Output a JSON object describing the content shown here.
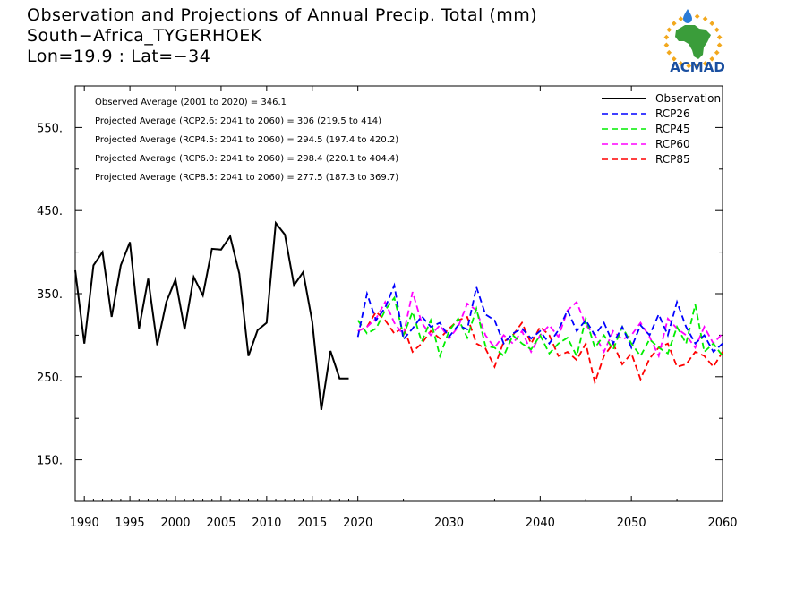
{
  "title": {
    "line1": "Observation and Projections of Annual Precip. Total (mm)",
    "line2": "South−Africa_TYGERHOEK",
    "line3": "Lon=19.9 : Lat=−34"
  },
  "logo": {
    "text": "ACMAD"
  },
  "colors": {
    "observation": "#000000",
    "rcp26": "#0000ff",
    "rcp45": "#00ee00",
    "rcp60": "#ff00ff",
    "rcp85": "#ff0000",
    "logo_text": "#1a4fa0",
    "logo_africa": "#3a9d3a",
    "logo_sun": "#f2a81d"
  },
  "stats": [
    "Observed Average (2001 to 2020) = 346.1",
    "Projected Average (RCP2.6: 2041 to 2060) = 306 (219.5 to 414)",
    "Projected Average (RCP4.5: 2041 to 2060) = 294.5 (197.4 to 420.2)",
    "Projected Average (RCP6.0: 2041 to 2060) = 298.4 (220.1 to 404.4)",
    "Projected Average (RCP8.5: 2041 to 2060) = 277.5 (187.3 to 369.7)"
  ],
  "chart_data": {
    "type": "line",
    "xlim": [
      1989,
      2060
    ],
    "ylim": [
      100,
      600
    ],
    "x_ticks": [
      1990,
      1995,
      2000,
      2005,
      2010,
      2015,
      2020,
      2030,
      2040,
      2050,
      2060
    ],
    "y_ticks": [
      150,
      250,
      350,
      450,
      550
    ],
    "y_tick_labels": [
      "150.",
      "250.",
      "350.",
      "450.",
      "550."
    ],
    "grid": false,
    "legend_position": "top-right",
    "series": [
      {
        "name": "Observation",
        "style": "solid",
        "x": [
          1989,
          1990,
          1991,
          1992,
          1993,
          1994,
          1995,
          1996,
          1997,
          1998,
          1999,
          2000,
          2001,
          2002,
          2003,
          2004,
          2005,
          2006,
          2007,
          2008,
          2009,
          2010,
          2011,
          2012,
          2013,
          2014,
          2015,
          2016,
          2017,
          2018,
          2019
        ],
        "y": [
          378,
          290,
          384,
          400,
          322,
          384,
          412,
          308,
          368,
          288,
          340,
          367,
          307,
          370,
          348,
          404,
          403,
          419,
          374,
          275,
          306,
          315,
          435,
          421,
          360,
          376,
          316,
          210,
          281,
          248,
          248
        ]
      },
      {
        "name": "RCP26",
        "style": "dashed",
        "x": [
          2020,
          2021,
          2022,
          2023,
          2024,
          2025,
          2026,
          2027,
          2028,
          2029,
          2030,
          2031,
          2032,
          2033,
          2034,
          2035,
          2036,
          2037,
          2038,
          2039,
          2040,
          2041,
          2042,
          2043,
          2044,
          2045,
          2046,
          2047,
          2048,
          2049,
          2050,
          2051,
          2052,
          2053,
          2054,
          2055,
          2056,
          2057,
          2058,
          2059,
          2060
        ],
        "y": [
          298,
          350,
          318,
          333,
          360,
          295,
          308,
          323,
          310,
          315,
          298,
          312,
          307,
          358,
          325,
          318,
          290,
          302,
          308,
          296,
          305,
          290,
          306,
          330,
          305,
          318,
          300,
          315,
          290,
          310,
          285,
          312,
          300,
          325,
          300,
          340,
          310,
          290,
          300,
          280,
          290
        ]
      },
      {
        "name": "RCP45",
        "style": "dashed",
        "x": [
          2020,
          2021,
          2022,
          2023,
          2024,
          2025,
          2026,
          2027,
          2028,
          2029,
          2030,
          2031,
          2032,
          2033,
          2034,
          2035,
          2036,
          2037,
          2038,
          2039,
          2040,
          2041,
          2042,
          2043,
          2044,
          2045,
          2046,
          2047,
          2048,
          2049,
          2050,
          2051,
          2052,
          2053,
          2054,
          2055,
          2056,
          2057,
          2058,
          2059,
          2060
        ],
        "y": [
          318,
          302,
          308,
          330,
          345,
          300,
          328,
          292,
          318,
          275,
          305,
          320,
          297,
          332,
          287,
          285,
          275,
          300,
          290,
          283,
          300,
          278,
          290,
          297,
          275,
          320,
          285,
          300,
          283,
          310,
          290,
          275,
          295,
          285,
          278,
          310,
          290,
          337,
          280,
          290,
          275
        ]
      },
      {
        "name": "RCP60",
        "style": "dashed",
        "x": [
          2020,
          2021,
          2022,
          2023,
          2024,
          2025,
          2026,
          2027,
          2028,
          2029,
          2030,
          2031,
          2032,
          2033,
          2034,
          2035,
          2036,
          2037,
          2038,
          2039,
          2040,
          2041,
          2042,
          2043,
          2044,
          2045,
          2046,
          2047,
          2048,
          2049,
          2050,
          2051,
          2052,
          2053,
          2054,
          2055,
          2056,
          2057,
          2058,
          2059,
          2060
        ],
        "y": [
          305,
          310,
          320,
          340,
          315,
          300,
          352,
          315,
          300,
          312,
          296,
          310,
          338,
          330,
          300,
          285,
          300,
          290,
          305,
          280,
          300,
          312,
          298,
          330,
          340,
          312,
          300,
          280,
          305,
          295,
          300,
          315,
          298,
          275,
          320,
          308,
          300,
          285,
          310,
          290,
          302
        ]
      },
      {
        "name": "RCP85",
        "style": "dashed",
        "x": [
          2020,
          2021,
          2022,
          2023,
          2024,
          2025,
          2026,
          2027,
          2028,
          2029,
          2030,
          2031,
          2032,
          2033,
          2034,
          2035,
          2036,
          2037,
          2038,
          2039,
          2040,
          2041,
          2042,
          2043,
          2044,
          2045,
          2046,
          2047,
          2048,
          2049,
          2050,
          2051,
          2052,
          2053,
          2054,
          2055,
          2056,
          2057,
          2058,
          2059,
          2060
        ],
        "y": [
          305,
          310,
          328,
          318,
          302,
          310,
          280,
          290,
          305,
          296,
          308,
          318,
          322,
          290,
          284,
          262,
          292,
          300,
          315,
          290,
          310,
          300,
          275,
          280,
          270,
          290,
          243,
          275,
          290,
          265,
          278,
          247,
          272,
          285,
          290,
          262,
          265,
          280,
          275,
          262,
          280
        ]
      }
    ]
  }
}
